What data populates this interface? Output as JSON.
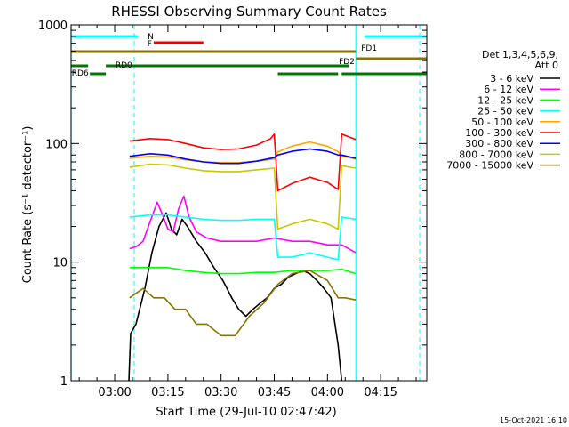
{
  "chart_data": {
    "type": "line",
    "title": "RHESSI Observing Summary Count Rates",
    "xlabel": "Start Time (29-Jul-10 02:47:42)",
    "ylabel": "Count Rate (s⁻¹ detector⁻¹)",
    "yscale": "log",
    "ylim": [
      1,
      1000
    ],
    "y_ticks": [
      "1",
      "10",
      "100",
      "1000"
    ],
    "x_ticks": [
      "03:00",
      "03:15",
      "03:30",
      "03:45",
      "04:00",
      "04:15"
    ],
    "x_tick_minutes": [
      180,
      195,
      210,
      225,
      240,
      255
    ],
    "xlim_minutes": [
      167.7,
      268
    ],
    "legend_title": [
      "Det 1,3,4,5,6,9,",
      "Att 0"
    ],
    "legend_position": "right",
    "series": [
      {
        "name": "3 - 6 keV",
        "color": "#000000",
        "points": [
          [
            184.0,
            1
          ],
          [
            184.5,
            2.5
          ],
          [
            186,
            3
          ],
          [
            188.5,
            6
          ],
          [
            190.5,
            12
          ],
          [
            192.5,
            20
          ],
          [
            194.5,
            26
          ],
          [
            196,
            19
          ],
          [
            197.5,
            17
          ],
          [
            199,
            23
          ],
          [
            200.5,
            20
          ],
          [
            203,
            15
          ],
          [
            205.5,
            12
          ],
          [
            208,
            9
          ],
          [
            210.5,
            7
          ],
          [
            213,
            5
          ],
          [
            215,
            4
          ],
          [
            217,
            3.5
          ],
          [
            219,
            4
          ],
          [
            221,
            4.5
          ],
          [
            223,
            5
          ],
          [
            225,
            6
          ],
          [
            227,
            6.5
          ],
          [
            229,
            7.5
          ],
          [
            231,
            8
          ],
          [
            233,
            8.5
          ],
          [
            235,
            8
          ],
          [
            237,
            7
          ],
          [
            239,
            6
          ],
          [
            241,
            5
          ],
          [
            243,
            2
          ],
          [
            244,
            1
          ]
        ]
      },
      {
        "name": "6 - 12 keV",
        "color": "#ff00ff",
        "points": [
          [
            184.2,
            13
          ],
          [
            186,
            13.5
          ],
          [
            188,
            15
          ],
          [
            190,
            22
          ],
          [
            192,
            32
          ],
          [
            193.5,
            25
          ],
          [
            195,
            19
          ],
          [
            196.5,
            18
          ],
          [
            198,
            28
          ],
          [
            199.5,
            36
          ],
          [
            201,
            24
          ],
          [
            203,
            18
          ],
          [
            206,
            16
          ],
          [
            210,
            15
          ],
          [
            215,
            15
          ],
          [
            220,
            15
          ],
          [
            225,
            16
          ],
          [
            230,
            15
          ],
          [
            235,
            15
          ],
          [
            240,
            14
          ],
          [
            244,
            14
          ],
          [
            248,
            12
          ]
        ]
      },
      {
        "name": "12 - 25 keV",
        "color": "#00ff00",
        "points": [
          [
            184.2,
            9
          ],
          [
            188,
            9
          ],
          [
            195,
            9
          ],
          [
            200,
            8.5
          ],
          [
            205,
            8.2
          ],
          [
            210,
            8
          ],
          [
            215,
            8
          ],
          [
            220,
            8.2
          ],
          [
            225,
            8.2
          ],
          [
            230,
            8.5
          ],
          [
            235,
            8.5
          ],
          [
            240,
            8.5
          ],
          [
            244,
            8.7
          ],
          [
            248,
            8
          ]
        ]
      },
      {
        "name": "25 - 50 keV",
        "color": "#00ffff",
        "points": [
          [
            184.2,
            24
          ],
          [
            190,
            25
          ],
          [
            195,
            25
          ],
          [
            200,
            24
          ],
          [
            205,
            23
          ],
          [
            210,
            22.5
          ],
          [
            215,
            22.5
          ],
          [
            220,
            23
          ],
          [
            225,
            23
          ],
          [
            226,
            11
          ],
          [
            230,
            11
          ],
          [
            235,
            12
          ],
          [
            240,
            11
          ],
          [
            243,
            10.5
          ],
          [
            244,
            24
          ],
          [
            248,
            23
          ]
        ]
      },
      {
        "name": "50 - 100 keV",
        "color": "#ffa500",
        "points": [
          [
            184.2,
            75
          ],
          [
            190,
            78
          ],
          [
            195,
            77
          ],
          [
            200,
            73
          ],
          [
            205,
            70
          ],
          [
            210,
            69
          ],
          [
            215,
            69
          ],
          [
            220,
            71
          ],
          [
            225,
            74
          ],
          [
            226,
            85
          ],
          [
            230,
            95
          ],
          [
            235,
            103
          ],
          [
            240,
            95
          ],
          [
            243,
            85
          ],
          [
            244,
            78
          ],
          [
            248,
            74
          ]
        ]
      },
      {
        "name": "100 - 300 keV",
        "color": "#ff0000",
        "points": [
          [
            184.2,
            105
          ],
          [
            190,
            110
          ],
          [
            195,
            108
          ],
          [
            200,
            100
          ],
          [
            205,
            92
          ],
          [
            210,
            89
          ],
          [
            215,
            90
          ],
          [
            220,
            97
          ],
          [
            224,
            110
          ],
          [
            225,
            120
          ],
          [
            226,
            40
          ],
          [
            230,
            46
          ],
          [
            235,
            52
          ],
          [
            240,
            47
          ],
          [
            243,
            41
          ],
          [
            244,
            120
          ],
          [
            248,
            108
          ]
        ]
      },
      {
        "name": "300 - 800 keV",
        "color": "#0000ff",
        "points": [
          [
            184.2,
            78
          ],
          [
            190,
            82
          ],
          [
            195,
            80
          ],
          [
            200,
            74
          ],
          [
            205,
            70
          ],
          [
            210,
            68
          ],
          [
            215,
            68
          ],
          [
            220,
            71
          ],
          [
            225,
            76
          ],
          [
            226,
            80
          ],
          [
            230,
            86
          ],
          [
            235,
            90
          ],
          [
            240,
            86
          ],
          [
            243,
            80
          ],
          [
            244,
            80
          ],
          [
            248,
            75
          ]
        ]
      },
      {
        "name": "800 - 7000 keV",
        "color": "#c8c800",
        "points": [
          [
            184.2,
            63
          ],
          [
            190,
            67
          ],
          [
            195,
            66
          ],
          [
            200,
            62
          ],
          [
            205,
            59
          ],
          [
            210,
            58
          ],
          [
            215,
            58
          ],
          [
            220,
            60
          ],
          [
            225,
            62
          ],
          [
            226,
            19
          ],
          [
            230,
            21
          ],
          [
            235,
            23
          ],
          [
            240,
            21
          ],
          [
            243,
            19
          ],
          [
            244,
            65
          ],
          [
            248,
            62
          ]
        ]
      },
      {
        "name": "7000 - 15000 keV",
        "color": "#8b7300",
        "points": [
          [
            184.2,
            5
          ],
          [
            188,
            6
          ],
          [
            191,
            5
          ],
          [
            194,
            5
          ],
          [
            197,
            4
          ],
          [
            200,
            4
          ],
          [
            203,
            3
          ],
          [
            206,
            3
          ],
          [
            210,
            2.4
          ],
          [
            214,
            2.4
          ],
          [
            218,
            3.5
          ],
          [
            222,
            4.5
          ],
          [
            226,
            6.5
          ],
          [
            230,
            8
          ],
          [
            235,
            8.5
          ],
          [
            240,
            7
          ],
          [
            243,
            5
          ],
          [
            245,
            5
          ],
          [
            248,
            4.8
          ]
        ]
      }
    ],
    "flag_bars": [
      {
        "label": "N",
        "color": "#00ffff",
        "segments": [
          [
            167.7,
            186.5
          ],
          [
            250.5,
            268
          ]
        ]
      },
      {
        "label": "F",
        "color": "#ee0000",
        "segments": [
          [
            191,
            205
          ]
        ]
      },
      {
        "label": "FD1",
        "color": "#8b7300",
        "segments": [
          [
            167.7,
            248
          ]
        ]
      },
      {
        "label": "FD2",
        "color": "#8b7300",
        "segments": [
          [
            248,
            268
          ]
        ]
      },
      {
        "label": "RD0",
        "color": "#007700",
        "segments": [
          [
            167.7,
            172.5
          ],
          [
            177.5,
            246
          ]
        ]
      },
      {
        "label": "RD6",
        "color": "#007700",
        "segments": [
          [
            173,
            177.5
          ],
          [
            226,
            243
          ],
          [
            244,
            268
          ]
        ]
      }
    ],
    "flag_bar_labels": [
      "N",
      "F",
      "FD1",
      "FD2",
      "RD0",
      "RD6"
    ],
    "vertical_lines_minutes": {
      "solid": [
        167.7,
        248
      ],
      "dashed": [
        185.5,
        266
      ]
    }
  },
  "timestamp": "15-Oct-2021 16:10"
}
